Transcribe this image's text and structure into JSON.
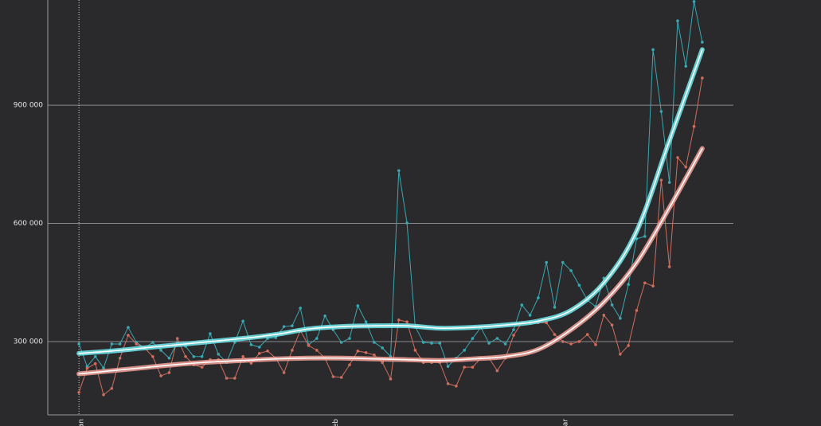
{
  "chart_data": {
    "type": "line",
    "x": [
      0,
      1,
      2,
      3,
      4,
      5,
      6,
      7,
      8,
      9,
      10,
      11,
      12,
      13,
      14,
      15,
      16,
      17,
      18,
      19,
      20,
      21,
      22,
      23,
      24,
      25,
      26,
      27,
      28,
      29,
      30,
      31,
      32,
      33,
      34,
      35,
      36,
      37,
      38,
      39,
      40,
      41,
      42,
      43,
      44,
      45,
      46,
      47,
      48,
      49,
      50,
      51,
      52,
      53,
      54,
      55,
      56,
      57,
      58,
      59,
      60,
      61,
      62,
      63,
      64,
      65,
      66,
      67,
      68,
      69,
      70,
      71,
      72,
      73,
      74,
      75,
      76
    ],
    "xlim": [
      -3.8,
      79.8
    ],
    "xticks": [
      {
        "value": 0,
        "label": "an"
      },
      {
        "value": 31,
        "label": "eb"
      },
      {
        "value": 59,
        "label": "ar"
      }
    ],
    "ylim": [
      114000,
      1167000
    ],
    "yticks": [
      {
        "value": 300000,
        "label": "300 000"
      },
      {
        "value": 600000,
        "label": "600 000"
      },
      {
        "value": 900000,
        "label": "900 000"
      }
    ],
    "grid": true,
    "series": [
      {
        "color": "#3aa8b0",
        "style": "raw",
        "values": [
          294000,
          237000,
          262000,
          233000,
          294000,
          294000,
          336000,
          298000,
          284000,
          298000,
          278000,
          258000,
          298000,
          288000,
          262000,
          262000,
          320000,
          268000,
          247000,
          298000,
          352000,
          292000,
          286000,
          308000,
          310000,
          338000,
          340000,
          385000,
          292000,
          308000,
          365000,
          330000,
          298000,
          308000,
          391000,
          350000,
          298000,
          284000,
          262000,
          734000,
          601000,
          338000,
          298000,
          296000,
          296000,
          237000,
          258000,
          278000,
          308000,
          336000,
          296000,
          308000,
          294000,
          330000,
          393000,
          367000,
          411000,
          501000,
          387000,
          501000,
          480000,
          443000,
          405000,
          389000,
          461000,
          393000,
          359000,
          445000,
          561000,
          567000,
          1041000,
          884000,
          704000,
          1114000,
          999000,
          1163000,
          1060000
        ]
      },
      {
        "color": "#cf6d5c",
        "style": "raw",
        "values": [
          171000,
          232000,
          244000,
          165000,
          181000,
          258000,
          316000,
          294000,
          284000,
          262000,
          213000,
          221000,
          308000,
          262000,
          241000,
          235000,
          254000,
          254000,
          207000,
          207000,
          262000,
          245000,
          270000,
          276000,
          258000,
          221000,
          278000,
          328000,
          290000,
          278000,
          258000,
          211000,
          209000,
          241000,
          276000,
          272000,
          266000,
          247000,
          205000,
          355000,
          350000,
          278000,
          247000,
          247000,
          247000,
          193000,
          187000,
          235000,
          235000,
          258000,
          258000,
          226000,
          258000,
          316000,
          348000,
          348000,
          348000,
          348000,
          318000,
          300000,
          294000,
          300000,
          318000,
          292000,
          367000,
          342000,
          268000,
          290000,
          379000,
          449000,
          441000,
          710000,
          490000,
          767000,
          743000,
          846000,
          969000
        ]
      },
      {
        "color": "#6fe8ec",
        "style": "smooth",
        "x": [
          0,
          4,
          8,
          12,
          16,
          20,
          24,
          28,
          32,
          36,
          40,
          44,
          48,
          52,
          56,
          60,
          64,
          68,
          72,
          76
        ],
        "values": [
          270000,
          276000,
          284000,
          292000,
          300000,
          308000,
          318000,
          332000,
          338000,
          340000,
          340000,
          334000,
          336000,
          342000,
          352000,
          379000,
          449000,
          580000,
          810000,
          1041000
        ]
      },
      {
        "color": "#f2a096",
        "style": "smooth",
        "x": [
          0,
          4,
          8,
          12,
          16,
          20,
          24,
          28,
          32,
          36,
          40,
          44,
          48,
          52,
          56,
          60,
          64,
          68,
          72,
          76
        ],
        "values": [
          218000,
          226000,
          234000,
          242000,
          248000,
          252000,
          256000,
          258000,
          258000,
          256000,
          254000,
          252000,
          256000,
          262000,
          280000,
          330000,
          400000,
          500000,
          640000,
          790000
        ]
      }
    ]
  }
}
